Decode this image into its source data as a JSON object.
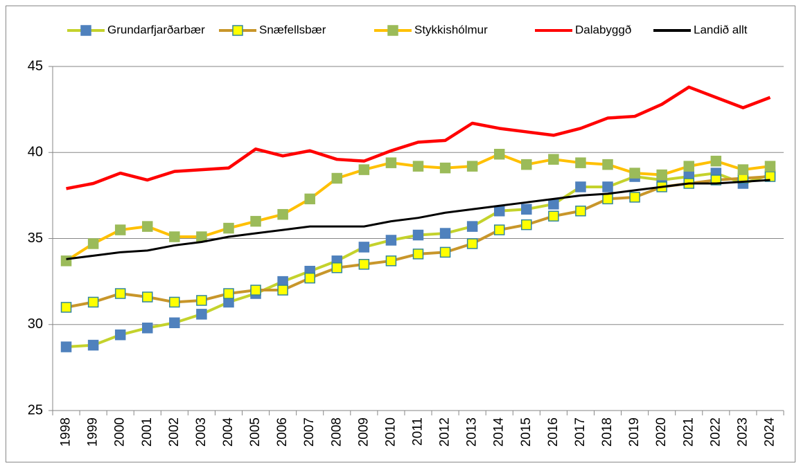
{
  "chart_data": {
    "type": "line",
    "categories": [
      "1998",
      "1999",
      "2000",
      "2001",
      "2002",
      "2003",
      "2004",
      "2005",
      "2006",
      "2007",
      "2008",
      "2009",
      "2010",
      "2011",
      "2012",
      "2013",
      "2014",
      "2015",
      "2016",
      "2017",
      "2018",
      "2019",
      "2020",
      "2021",
      "2022",
      "2023",
      "2024"
    ],
    "series": [
      {
        "name": "Grundarfjarðarbær",
        "color": "#c4d22c",
        "marker_color": "#4f81bd",
        "marker_edge": "#4f81bd",
        "values": [
          28.7,
          28.8,
          29.4,
          29.8,
          30.1,
          30.6,
          31.3,
          31.8,
          32.5,
          33.1,
          33.7,
          34.5,
          34.9,
          35.2,
          35.3,
          35.7,
          36.6,
          36.7,
          37.0,
          38.0,
          38.0,
          38.6,
          38.4,
          38.6,
          38.8,
          38.2,
          38.7
        ]
      },
      {
        "name": "Snæfellsbær",
        "color": "#c8962a",
        "marker_color": "#ffff00",
        "marker_edge": "#31859c",
        "values": [
          31.0,
          31.3,
          31.8,
          31.6,
          31.3,
          31.4,
          31.8,
          32.0,
          32.0,
          32.7,
          33.3,
          33.5,
          33.7,
          34.1,
          34.2,
          34.7,
          35.5,
          35.8,
          36.3,
          36.6,
          37.3,
          37.4,
          38.0,
          38.2,
          38.4,
          38.5,
          38.6
        ]
      },
      {
        "name": "Stykkishólmur",
        "color": "#ffc000",
        "marker_color": "#9bbb59",
        "marker_edge": "#9bbb59",
        "values": [
          33.7,
          34.7,
          35.5,
          35.7,
          35.1,
          35.1,
          35.6,
          36.0,
          36.4,
          37.3,
          38.5,
          39.0,
          39.4,
          39.2,
          39.1,
          39.2,
          39.9,
          39.3,
          39.6,
          39.4,
          39.3,
          38.8,
          38.7,
          39.2,
          39.5,
          39.0,
          39.2
        ]
      },
      {
        "name": "Dalabyggð",
        "color": "#ff0000",
        "values": [
          37.9,
          38.2,
          38.8,
          38.4,
          38.9,
          39.0,
          39.1,
          40.2,
          39.8,
          40.1,
          39.6,
          39.5,
          40.1,
          40.6,
          40.7,
          41.7,
          41.4,
          41.2,
          41.0,
          41.4,
          42.0,
          42.1,
          42.8,
          43.8,
          43.2,
          42.6,
          43.2
        ]
      },
      {
        "name": "Landið allt",
        "color": "#000000",
        "values": [
          33.8,
          34.0,
          34.2,
          34.3,
          34.6,
          34.8,
          35.1,
          35.3,
          35.5,
          35.7,
          35.7,
          35.7,
          36.0,
          36.2,
          36.5,
          36.7,
          36.9,
          37.1,
          37.3,
          37.5,
          37.6,
          37.8,
          38.0,
          38.2,
          38.2,
          38.3,
          38.4
        ]
      }
    ],
    "ylim": [
      25,
      45
    ],
    "yticks": [
      25,
      30,
      35,
      40,
      45
    ],
    "grid": true,
    "legend": "top"
  }
}
